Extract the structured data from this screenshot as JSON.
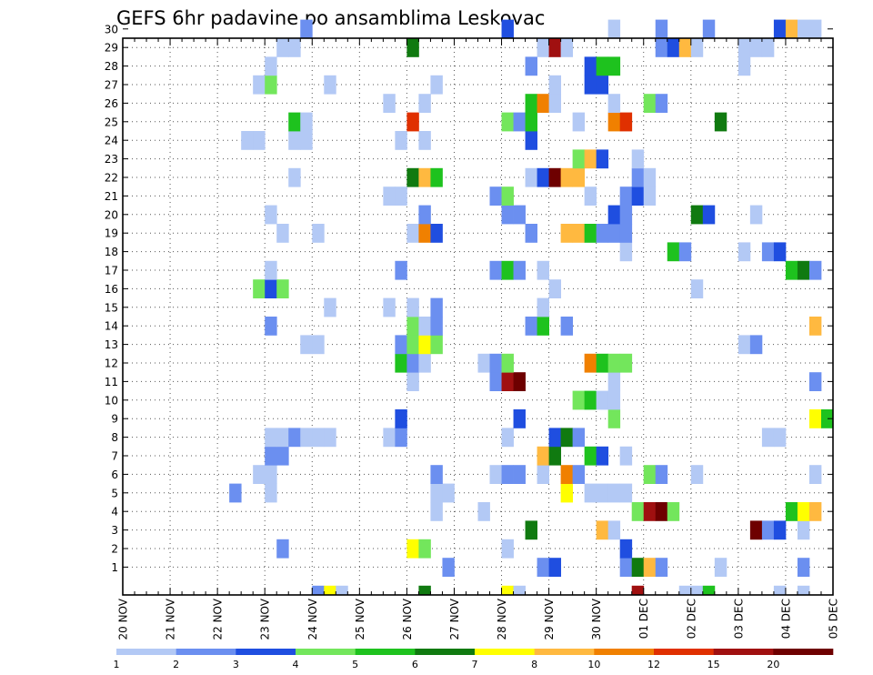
{
  "chart_data": {
    "type": "heatmap",
    "title": "GEFS 6hr padavine po ansamblima Leskovac",
    "y_ticks": [
      "1",
      "2",
      "3",
      "4",
      "5",
      "6",
      "7",
      "8",
      "9",
      "10",
      "11",
      "12",
      "13",
      "14",
      "15",
      "16",
      "17",
      "18",
      "19",
      "20",
      "21",
      "22",
      "23",
      "24",
      "25",
      "26",
      "27",
      "28",
      "29",
      "30"
    ],
    "x_ticks": [
      "20 NOV",
      "21 NOV",
      "22 NOV",
      "23 NOV",
      "24 NOV",
      "25 NOV",
      "26 NOV",
      "27 NOV",
      "28 NOV",
      "29 NOV",
      "30 NOV",
      "01 DEC",
      "02 DEC",
      "03 DEC",
      "04 DEC",
      "05 DEC"
    ],
    "steps_per_day": 4,
    "n_steps": 60,
    "grid": true,
    "colorbar": {
      "labels": [
        "1",
        "2",
        "3",
        "4",
        "5",
        "6",
        "7",
        "8",
        "10",
        "12",
        "15",
        "20"
      ],
      "colors": [
        "#b3c9f5",
        "#6b8ff0",
        "#1f4ee0",
        "#73e65c",
        "#1ec21e",
        "#107a10",
        "#ffff00",
        "#ffb940",
        "#f08000",
        "#e03000",
        "#a01010",
        "#6e0000"
      ]
    },
    "cells": [
      [
        1,
        28,
        2
      ],
      [
        1,
        36,
        2
      ],
      [
        1,
        37,
        3
      ],
      [
        1,
        43,
        2
      ],
      [
        1,
        44,
        6
      ],
      [
        1,
        45,
        8
      ],
      [
        1,
        46,
        2
      ],
      [
        1,
        51,
        1
      ],
      [
        1,
        58,
        2
      ],
      [
        2,
        14,
        2
      ],
      [
        2,
        25,
        7
      ],
      [
        2,
        26,
        4
      ],
      [
        2,
        33,
        1
      ],
      [
        2,
        43,
        3
      ],
      [
        3,
        35,
        6
      ],
      [
        3,
        41,
        8
      ],
      [
        3,
        42,
        1
      ],
      [
        3,
        54,
        12
      ],
      [
        3,
        55,
        2
      ],
      [
        3,
        56,
        3
      ],
      [
        3,
        58,
        1
      ],
      [
        4,
        27,
        1
      ],
      [
        4,
        31,
        1
      ],
      [
        4,
        44,
        4
      ],
      [
        4,
        45,
        11
      ],
      [
        4,
        46,
        12
      ],
      [
        4,
        47,
        4
      ],
      [
        4,
        57,
        5
      ],
      [
        4,
        58,
        7
      ],
      [
        4,
        59,
        8
      ],
      [
        5,
        10,
        2
      ],
      [
        5,
        13,
        1
      ],
      [
        5,
        27,
        1
      ],
      [
        5,
        28,
        1
      ],
      [
        5,
        38,
        7
      ],
      [
        5,
        40,
        1
      ],
      [
        5,
        41,
        1
      ],
      [
        5,
        42,
        1
      ],
      [
        5,
        43,
        1
      ],
      [
        6,
        12,
        1
      ],
      [
        6,
        13,
        1
      ],
      [
        6,
        27,
        2
      ],
      [
        6,
        32,
        1
      ],
      [
        6,
        33,
        2
      ],
      [
        6,
        34,
        2
      ],
      [
        6,
        36,
        1
      ],
      [
        6,
        38,
        9
      ],
      [
        6,
        39,
        2
      ],
      [
        6,
        45,
        4
      ],
      [
        6,
        46,
        2
      ],
      [
        6,
        49,
        1
      ],
      [
        6,
        59,
        1
      ],
      [
        7,
        13,
        2
      ],
      [
        7,
        14,
        2
      ],
      [
        7,
        36,
        8
      ],
      [
        7,
        37,
        6
      ],
      [
        7,
        40,
        5
      ],
      [
        7,
        41,
        3
      ],
      [
        7,
        43,
        1
      ],
      [
        8,
        13,
        1
      ],
      [
        8,
        14,
        1
      ],
      [
        8,
        15,
        2
      ],
      [
        8,
        16,
        1
      ],
      [
        8,
        17,
        1
      ],
      [
        8,
        18,
        1
      ],
      [
        8,
        23,
        1
      ],
      [
        8,
        24,
        2
      ],
      [
        8,
        33,
        1
      ],
      [
        8,
        37,
        3
      ],
      [
        8,
        38,
        6
      ],
      [
        8,
        39,
        2
      ],
      [
        8,
        55,
        1
      ],
      [
        8,
        56,
        1
      ],
      [
        9,
        24,
        3
      ],
      [
        9,
        34,
        3
      ],
      [
        9,
        42,
        4
      ],
      [
        9,
        59,
        7
      ],
      [
        9,
        60,
        5
      ],
      [
        10,
        39,
        4
      ],
      [
        10,
        40,
        5
      ],
      [
        10,
        41,
        1
      ],
      [
        10,
        42,
        1
      ],
      [
        11,
        25,
        1
      ],
      [
        11,
        32,
        2
      ],
      [
        11,
        33,
        11
      ],
      [
        11,
        34,
        12
      ],
      [
        11,
        42,
        1
      ],
      [
        11,
        59,
        2
      ],
      [
        12,
        24,
        5
      ],
      [
        12,
        25,
        2
      ],
      [
        12,
        26,
        1
      ],
      [
        12,
        31,
        1
      ],
      [
        12,
        32,
        2
      ],
      [
        12,
        33,
        4
      ],
      [
        12,
        40,
        9
      ],
      [
        12,
        41,
        5
      ],
      [
        12,
        42,
        4
      ],
      [
        12,
        43,
        4
      ],
      [
        13,
        16,
        1
      ],
      [
        13,
        17,
        1
      ],
      [
        13,
        24,
        2
      ],
      [
        13,
        25,
        4
      ],
      [
        13,
        26,
        7
      ],
      [
        13,
        27,
        4
      ],
      [
        13,
        53,
        1
      ],
      [
        13,
        54,
        2
      ],
      [
        14,
        13,
        2
      ],
      [
        14,
        25,
        4
      ],
      [
        14,
        26,
        1
      ],
      [
        14,
        27,
        2
      ],
      [
        14,
        35,
        2
      ],
      [
        14,
        36,
        5
      ],
      [
        14,
        38,
        2
      ],
      [
        14,
        59,
        8
      ],
      [
        15,
        18,
        1
      ],
      [
        15,
        23,
        1
      ],
      [
        15,
        25,
        1
      ],
      [
        15,
        27,
        2
      ],
      [
        15,
        36,
        1
      ],
      [
        16,
        12,
        4
      ],
      [
        16,
        13,
        3
      ],
      [
        16,
        14,
        4
      ],
      [
        16,
        37,
        1
      ],
      [
        16,
        49,
        1
      ],
      [
        17,
        13,
        1
      ],
      [
        17,
        24,
        2
      ],
      [
        17,
        32,
        2
      ],
      [
        17,
        33,
        5
      ],
      [
        17,
        34,
        2
      ],
      [
        17,
        36,
        1
      ],
      [
        17,
        57,
        5
      ],
      [
        17,
        58,
        6
      ],
      [
        17,
        59,
        2
      ],
      [
        18,
        43,
        1
      ],
      [
        18,
        47,
        5
      ],
      [
        18,
        48,
        2
      ],
      [
        18,
        53,
        1
      ],
      [
        18,
        55,
        2
      ],
      [
        18,
        56,
        3
      ],
      [
        19,
        14,
        1
      ],
      [
        19,
        17,
        1
      ],
      [
        19,
        25,
        1
      ],
      [
        19,
        26,
        9
      ],
      [
        19,
        27,
        3
      ],
      [
        19,
        35,
        2
      ],
      [
        19,
        38,
        8
      ],
      [
        19,
        39,
        8
      ],
      [
        19,
        40,
        5
      ],
      [
        19,
        41,
        2
      ],
      [
        19,
        42,
        2
      ],
      [
        19,
        43,
        2
      ],
      [
        20,
        13,
        1
      ],
      [
        20,
        26,
        2
      ],
      [
        20,
        33,
        2
      ],
      [
        20,
        34,
        2
      ],
      [
        20,
        42,
        3
      ],
      [
        20,
        43,
        2
      ],
      [
        20,
        49,
        6
      ],
      [
        20,
        50,
        3
      ],
      [
        20,
        54,
        1
      ],
      [
        21,
        23,
        1
      ],
      [
        21,
        24,
        1
      ],
      [
        21,
        32,
        2
      ],
      [
        21,
        33,
        4
      ],
      [
        21,
        40,
        1
      ],
      [
        21,
        43,
        2
      ],
      [
        21,
        44,
        3
      ],
      [
        21,
        45,
        1
      ],
      [
        22,
        15,
        1
      ],
      [
        22,
        25,
        6
      ],
      [
        22,
        26,
        8
      ],
      [
        22,
        27,
        5
      ],
      [
        22,
        35,
        1
      ],
      [
        22,
        36,
        3
      ],
      [
        22,
        37,
        12
      ],
      [
        22,
        38,
        8
      ],
      [
        22,
        39,
        8
      ],
      [
        22,
        44,
        2
      ],
      [
        22,
        45,
        1
      ],
      [
        23,
        39,
        4
      ],
      [
        23,
        40,
        8
      ],
      [
        23,
        41,
        3
      ],
      [
        23,
        44,
        1
      ],
      [
        24,
        11,
        1
      ],
      [
        24,
        12,
        1
      ],
      [
        24,
        15,
        1
      ],
      [
        24,
        16,
        1
      ],
      [
        24,
        24,
        1
      ],
      [
        24,
        26,
        1
      ],
      [
        24,
        35,
        3
      ],
      [
        25,
        15,
        5
      ],
      [
        25,
        16,
        1
      ],
      [
        25,
        25,
        10
      ],
      [
        25,
        33,
        4
      ],
      [
        25,
        34,
        2
      ],
      [
        25,
        35,
        5
      ],
      [
        25,
        39,
        1
      ],
      [
        25,
        42,
        9
      ],
      [
        25,
        43,
        10
      ],
      [
        25,
        51,
        6
      ],
      [
        26,
        23,
        1
      ],
      [
        26,
        26,
        1
      ],
      [
        26,
        35,
        5
      ],
      [
        26,
        36,
        9
      ],
      [
        26,
        37,
        1
      ],
      [
        26,
        42,
        1
      ],
      [
        26,
        45,
        4
      ],
      [
        26,
        46,
        2
      ],
      [
        27,
        12,
        1
      ],
      [
        27,
        13,
        4
      ],
      [
        27,
        18,
        1
      ],
      [
        27,
        27,
        1
      ],
      [
        27,
        37,
        1
      ],
      [
        27,
        40,
        3
      ],
      [
        27,
        41,
        3
      ],
      [
        28,
        13,
        1
      ],
      [
        28,
        35,
        2
      ],
      [
        28,
        40,
        3
      ],
      [
        28,
        41,
        5
      ],
      [
        28,
        42,
        5
      ],
      [
        28,
        53,
        1
      ],
      [
        29,
        14,
        1
      ],
      [
        29,
        15,
        1
      ],
      [
        29,
        25,
        6
      ],
      [
        29,
        36,
        1
      ],
      [
        29,
        37,
        11
      ],
      [
        29,
        38,
        1
      ],
      [
        29,
        46,
        2
      ],
      [
        29,
        47,
        3
      ],
      [
        29,
        48,
        8
      ],
      [
        29,
        49,
        1
      ],
      [
        29,
        53,
        1
      ],
      [
        29,
        54,
        1
      ],
      [
        29,
        55,
        1
      ],
      [
        30,
        16,
        2
      ],
      [
        30,
        33,
        3
      ],
      [
        30,
        42,
        1
      ],
      [
        30,
        46,
        2
      ],
      [
        30,
        50,
        2
      ],
      [
        30,
        56,
        3
      ],
      [
        30,
        57,
        8
      ],
      [
        30,
        58,
        1
      ],
      [
        30,
        59,
        1
      ],
      [
        0,
        17,
        2
      ],
      [
        0,
        18,
        7
      ],
      [
        0,
        19,
        1
      ],
      [
        0,
        26,
        6
      ],
      [
        0,
        33,
        7
      ],
      [
        0,
        34,
        1
      ],
      [
        0,
        44,
        11
      ],
      [
        0,
        48,
        1
      ],
      [
        0,
        49,
        1
      ],
      [
        0,
        50,
        5
      ],
      [
        0,
        56,
        1
      ],
      [
        0,
        58,
        1
      ]
    ]
  }
}
